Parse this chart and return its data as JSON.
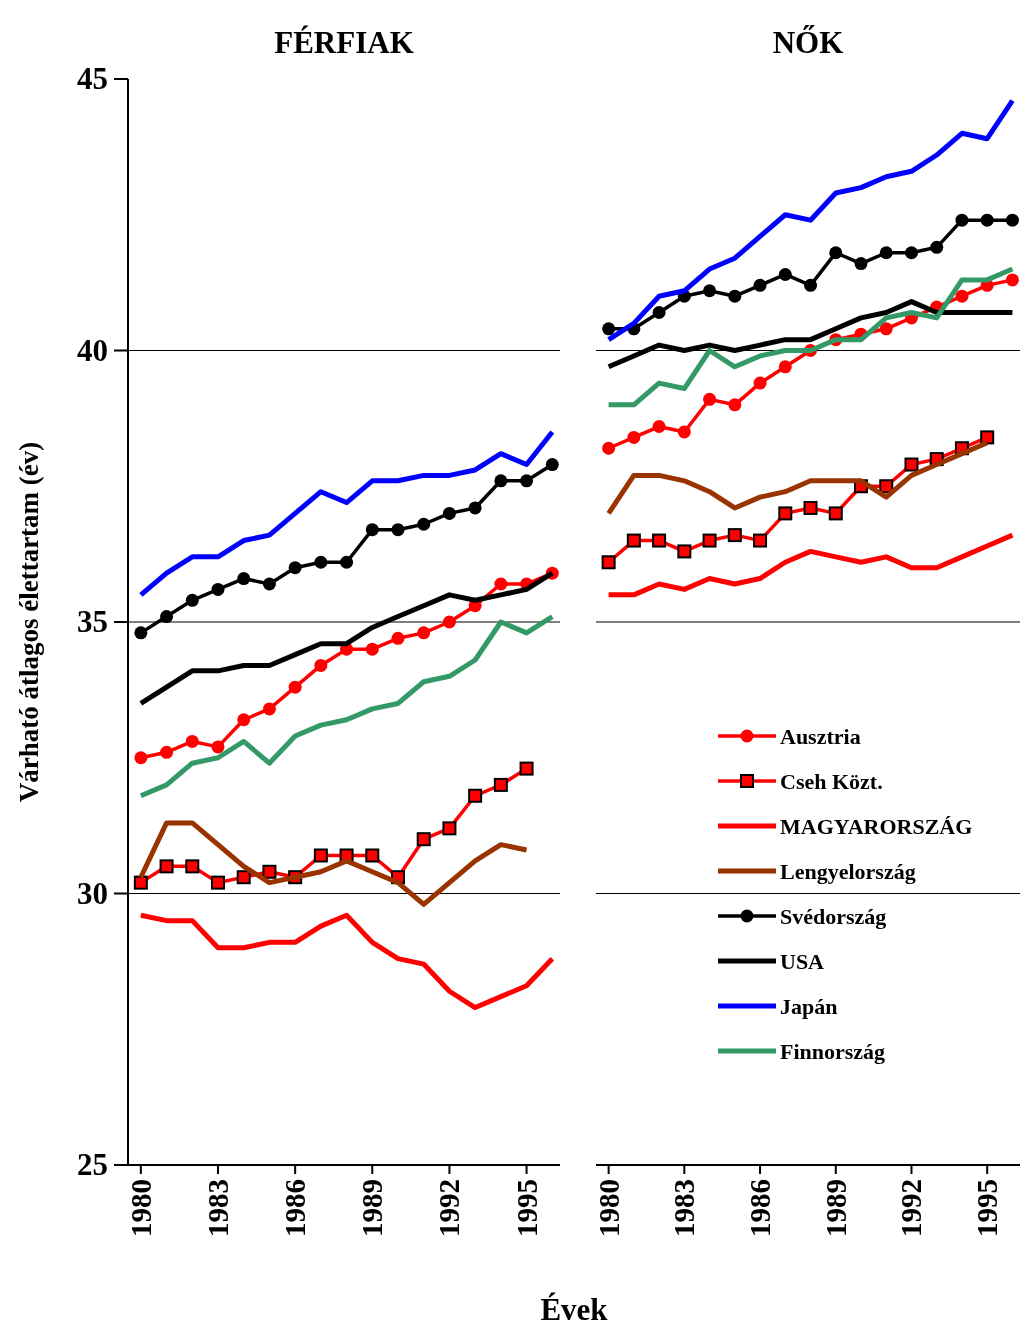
{
  "chart_data": [
    {
      "type": "line",
      "title": "FÉRFIAK",
      "xlabel": "Évek",
      "ylabel": "Várható átlagos élettartam (év)",
      "x": [
        1980,
        1981,
        1982,
        1983,
        1984,
        1985,
        1986,
        1987,
        1988,
        1989,
        1990,
        1991,
        1992,
        1993,
        1994,
        1995,
        1996
      ],
      "xlim": [
        1979.5,
        1996.3
      ],
      "xticks": [
        1980,
        1983,
        1986,
        1989,
        1992,
        1995
      ],
      "ylim": [
        25,
        45
      ],
      "yticks": [
        25,
        30,
        35,
        40,
        45
      ],
      "grid": "y",
      "legend": false,
      "series": [
        {
          "color": "#ff0000",
          "marker": "circle",
          "values": [
            32.5,
            32.6,
            32.8,
            32.7,
            33.2,
            33.4,
            33.8,
            34.2,
            34.5,
            34.5,
            34.7,
            34.8,
            35.0,
            35.3,
            35.7,
            35.7,
            35.9
          ]
        },
        {
          "color": "#ff0000",
          "marker": "square",
          "values": [
            30.2,
            30.5,
            30.5,
            30.2,
            30.3,
            30.4,
            30.3,
            30.7,
            30.7,
            30.7,
            30.3,
            31.0,
            31.2,
            31.8,
            32.0,
            32.3,
            null
          ]
        },
        {
          "color": "#ff0000",
          "marker": "none",
          "values": [
            29.6,
            29.5,
            29.5,
            29.0,
            29.0,
            29.1,
            29.1,
            29.4,
            29.6,
            29.1,
            28.8,
            28.7,
            28.2,
            27.9,
            28.1,
            28.3,
            28.8
          ]
        },
        {
          "color": "#993300",
          "marker": "none",
          "values": [
            30.3,
            31.3,
            31.3,
            30.9,
            30.5,
            30.2,
            30.3,
            30.4,
            30.6,
            30.4,
            30.2,
            29.8,
            30.2,
            30.6,
            30.9,
            30.8,
            null
          ]
        },
        {
          "color": "#000000",
          "marker": "circle",
          "values": [
            34.8,
            35.1,
            35.4,
            35.6,
            35.8,
            35.7,
            36.0,
            36.1,
            36.1,
            36.7,
            36.7,
            36.8,
            37.0,
            37.1,
            37.6,
            37.6,
            37.9
          ]
        },
        {
          "color": "#000000",
          "marker": "none",
          "values": [
            33.5,
            33.8,
            34.1,
            34.1,
            34.2,
            34.2,
            34.4,
            34.6,
            34.6,
            34.9,
            35.1,
            35.3,
            35.5,
            35.4,
            35.5,
            35.6,
            35.9
          ]
        },
        {
          "color": "#0000ff",
          "marker": "none",
          "values": [
            35.5,
            35.9,
            36.2,
            36.2,
            36.5,
            36.6,
            37.0,
            37.4,
            37.2,
            37.6,
            37.6,
            37.7,
            37.7,
            37.8,
            38.1,
            37.9,
            38.5
          ]
        },
        {
          "color": "#339966",
          "marker": "none",
          "values": [
            31.8,
            32.0,
            32.4,
            32.5,
            32.8,
            32.4,
            32.9,
            33.1,
            33.2,
            33.4,
            33.5,
            33.9,
            34.0,
            34.3,
            35.0,
            34.8,
            35.1
          ]
        }
      ]
    },
    {
      "type": "line",
      "title": "NŐK",
      "x": [
        1980,
        1981,
        1982,
        1983,
        1984,
        1985,
        1986,
        1987,
        1988,
        1989,
        1990,
        1991,
        1992,
        1993,
        1994,
        1995,
        1996
      ],
      "xlim": [
        1979.5,
        1996.3
      ],
      "xticks": [
        1980,
        1983,
        1986,
        1989,
        1992,
        1995
      ],
      "ylim": [
        25,
        45
      ],
      "yticks": [
        25,
        30,
        35,
        40,
        45
      ],
      "grid": "y",
      "tick_labels": "x",
      "legend": "bottom",
      "series": [
        {
          "name": "Ausztria",
          "color": "#ff0000",
          "marker": "circle",
          "values": [
            38.2,
            38.4,
            38.6,
            38.5,
            39.1,
            39.0,
            39.4,
            39.7,
            40.0,
            40.2,
            40.3,
            40.4,
            40.6,
            40.8,
            41.0,
            41.2,
            41.3
          ]
        },
        {
          "name": "Cseh Közt.",
          "color": "#ff0000",
          "marker": "square",
          "values": [
            36.1,
            36.5,
            36.5,
            36.3,
            36.5,
            36.6,
            36.5,
            37.0,
            37.1,
            37.0,
            37.5,
            37.5,
            37.9,
            38.0,
            38.2,
            38.4,
            null
          ]
        },
        {
          "name": "MAGYARORSZÁG",
          "color": "#ff0000",
          "marker": "none",
          "values": [
            35.5,
            35.5,
            35.7,
            35.6,
            35.8,
            35.7,
            35.8,
            36.1,
            36.3,
            36.2,
            36.1,
            36.2,
            36.0,
            36.0,
            36.2,
            36.4,
            36.6
          ]
        },
        {
          "name": "Lengyelország",
          "color": "#993300",
          "marker": "none",
          "values": [
            37.0,
            37.7,
            37.7,
            37.6,
            37.4,
            37.1,
            37.3,
            37.4,
            37.6,
            37.6,
            37.6,
            37.3,
            37.7,
            37.9,
            38.1,
            38.3,
            null
          ]
        },
        {
          "name": "Svédország",
          "color": "#000000",
          "marker": "circle",
          "values": [
            40.4,
            40.4,
            40.7,
            41.0,
            41.1,
            41.0,
            41.2,
            41.4,
            41.2,
            41.8,
            41.6,
            41.8,
            41.8,
            41.9,
            42.4,
            42.4,
            42.4
          ]
        },
        {
          "name": "USA",
          "color": "#000000",
          "marker": "none",
          "values": [
            39.7,
            39.9,
            40.1,
            40.0,
            40.1,
            40.0,
            40.1,
            40.2,
            40.2,
            40.4,
            40.6,
            40.7,
            40.9,
            40.7,
            40.7,
            40.7,
            40.7
          ]
        },
        {
          "name": "Japán",
          "color": "#0000ff",
          "marker": "none",
          "values": [
            40.2,
            40.5,
            41.0,
            41.1,
            41.5,
            41.7,
            42.1,
            42.5,
            42.4,
            42.9,
            43.0,
            43.2,
            43.3,
            43.6,
            44.0,
            43.9,
            44.6
          ]
        },
        {
          "name": "Finnország",
          "color": "#339966",
          "marker": "none",
          "values": [
            39.0,
            39.0,
            39.4,
            39.3,
            40.0,
            39.7,
            39.9,
            40.0,
            40.0,
            40.2,
            40.2,
            40.6,
            40.7,
            40.6,
            41.3,
            41.3,
            41.5
          ]
        }
      ]
    }
  ]
}
